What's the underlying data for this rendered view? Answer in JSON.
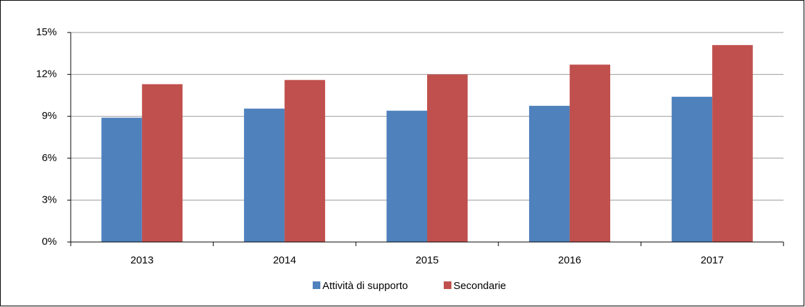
{
  "chart_data": {
    "type": "bar",
    "categories": [
      "2013",
      "2014",
      "2015",
      "2016",
      "2017"
    ],
    "series": [
      {
        "name": "Attività di supporto",
        "color": "#4f81bd",
        "values": [
          8.9,
          9.55,
          9.4,
          9.75,
          10.4
        ]
      },
      {
        "name": "Secondarie",
        "color": "#c0504d",
        "values": [
          11.3,
          11.6,
          12.0,
          12.7,
          14.1
        ]
      }
    ],
    "ylim": [
      0,
      15
    ],
    "yticks": [
      {
        "value": 0,
        "label": "0%"
      },
      {
        "value": 3,
        "label": "3%"
      },
      {
        "value": 6,
        "label": "6%"
      },
      {
        "value": 9,
        "label": "9%"
      },
      {
        "value": 12,
        "label": "12%"
      },
      {
        "value": 15,
        "label": "15%"
      }
    ],
    "grid": true,
    "legend": "bottom"
  }
}
